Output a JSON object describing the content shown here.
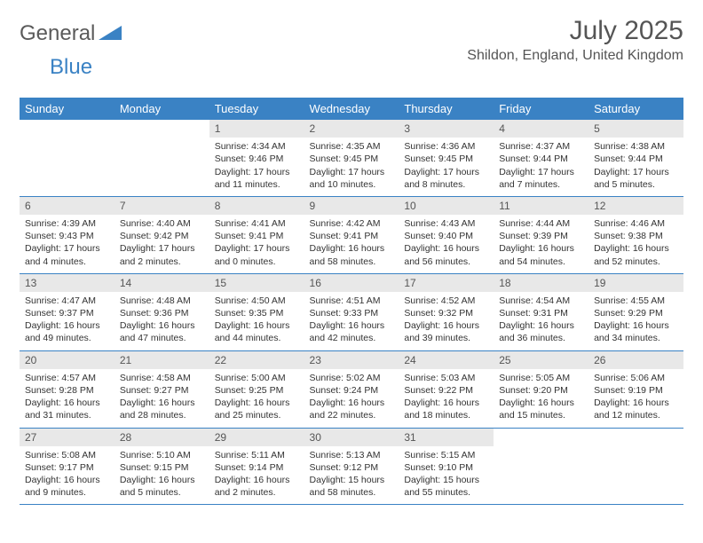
{
  "logo": {
    "part1": "General",
    "part2": "Blue"
  },
  "title": "July 2025",
  "location": "Shildon, England, United Kingdom",
  "colors": {
    "accent": "#3a82c4",
    "daynum_bg": "#e8e8e8",
    "text": "#333333",
    "header_text": "#555555"
  },
  "weekdays": [
    "Sunday",
    "Monday",
    "Tuesday",
    "Wednesday",
    "Thursday",
    "Friday",
    "Saturday"
  ],
  "weeks": [
    [
      null,
      null,
      {
        "n": "1",
        "sr": "Sunrise: 4:34 AM",
        "ss": "Sunset: 9:46 PM",
        "dl": "Daylight: 17 hours and 11 minutes."
      },
      {
        "n": "2",
        "sr": "Sunrise: 4:35 AM",
        "ss": "Sunset: 9:45 PM",
        "dl": "Daylight: 17 hours and 10 minutes."
      },
      {
        "n": "3",
        "sr": "Sunrise: 4:36 AM",
        "ss": "Sunset: 9:45 PM",
        "dl": "Daylight: 17 hours and 8 minutes."
      },
      {
        "n": "4",
        "sr": "Sunrise: 4:37 AM",
        "ss": "Sunset: 9:44 PM",
        "dl": "Daylight: 17 hours and 7 minutes."
      },
      {
        "n": "5",
        "sr": "Sunrise: 4:38 AM",
        "ss": "Sunset: 9:44 PM",
        "dl": "Daylight: 17 hours and 5 minutes."
      }
    ],
    [
      {
        "n": "6",
        "sr": "Sunrise: 4:39 AM",
        "ss": "Sunset: 9:43 PM",
        "dl": "Daylight: 17 hours and 4 minutes."
      },
      {
        "n": "7",
        "sr": "Sunrise: 4:40 AM",
        "ss": "Sunset: 9:42 PM",
        "dl": "Daylight: 17 hours and 2 minutes."
      },
      {
        "n": "8",
        "sr": "Sunrise: 4:41 AM",
        "ss": "Sunset: 9:41 PM",
        "dl": "Daylight: 17 hours and 0 minutes."
      },
      {
        "n": "9",
        "sr": "Sunrise: 4:42 AM",
        "ss": "Sunset: 9:41 PM",
        "dl": "Daylight: 16 hours and 58 minutes."
      },
      {
        "n": "10",
        "sr": "Sunrise: 4:43 AM",
        "ss": "Sunset: 9:40 PM",
        "dl": "Daylight: 16 hours and 56 minutes."
      },
      {
        "n": "11",
        "sr": "Sunrise: 4:44 AM",
        "ss": "Sunset: 9:39 PM",
        "dl": "Daylight: 16 hours and 54 minutes."
      },
      {
        "n": "12",
        "sr": "Sunrise: 4:46 AM",
        "ss": "Sunset: 9:38 PM",
        "dl": "Daylight: 16 hours and 52 minutes."
      }
    ],
    [
      {
        "n": "13",
        "sr": "Sunrise: 4:47 AM",
        "ss": "Sunset: 9:37 PM",
        "dl": "Daylight: 16 hours and 49 minutes."
      },
      {
        "n": "14",
        "sr": "Sunrise: 4:48 AM",
        "ss": "Sunset: 9:36 PM",
        "dl": "Daylight: 16 hours and 47 minutes."
      },
      {
        "n": "15",
        "sr": "Sunrise: 4:50 AM",
        "ss": "Sunset: 9:35 PM",
        "dl": "Daylight: 16 hours and 44 minutes."
      },
      {
        "n": "16",
        "sr": "Sunrise: 4:51 AM",
        "ss": "Sunset: 9:33 PM",
        "dl": "Daylight: 16 hours and 42 minutes."
      },
      {
        "n": "17",
        "sr": "Sunrise: 4:52 AM",
        "ss": "Sunset: 9:32 PM",
        "dl": "Daylight: 16 hours and 39 minutes."
      },
      {
        "n": "18",
        "sr": "Sunrise: 4:54 AM",
        "ss": "Sunset: 9:31 PM",
        "dl": "Daylight: 16 hours and 36 minutes."
      },
      {
        "n": "19",
        "sr": "Sunrise: 4:55 AM",
        "ss": "Sunset: 9:29 PM",
        "dl": "Daylight: 16 hours and 34 minutes."
      }
    ],
    [
      {
        "n": "20",
        "sr": "Sunrise: 4:57 AM",
        "ss": "Sunset: 9:28 PM",
        "dl": "Daylight: 16 hours and 31 minutes."
      },
      {
        "n": "21",
        "sr": "Sunrise: 4:58 AM",
        "ss": "Sunset: 9:27 PM",
        "dl": "Daylight: 16 hours and 28 minutes."
      },
      {
        "n": "22",
        "sr": "Sunrise: 5:00 AM",
        "ss": "Sunset: 9:25 PM",
        "dl": "Daylight: 16 hours and 25 minutes."
      },
      {
        "n": "23",
        "sr": "Sunrise: 5:02 AM",
        "ss": "Sunset: 9:24 PM",
        "dl": "Daylight: 16 hours and 22 minutes."
      },
      {
        "n": "24",
        "sr": "Sunrise: 5:03 AM",
        "ss": "Sunset: 9:22 PM",
        "dl": "Daylight: 16 hours and 18 minutes."
      },
      {
        "n": "25",
        "sr": "Sunrise: 5:05 AM",
        "ss": "Sunset: 9:20 PM",
        "dl": "Daylight: 16 hours and 15 minutes."
      },
      {
        "n": "26",
        "sr": "Sunrise: 5:06 AM",
        "ss": "Sunset: 9:19 PM",
        "dl": "Daylight: 16 hours and 12 minutes."
      }
    ],
    [
      {
        "n": "27",
        "sr": "Sunrise: 5:08 AM",
        "ss": "Sunset: 9:17 PM",
        "dl": "Daylight: 16 hours and 9 minutes."
      },
      {
        "n": "28",
        "sr": "Sunrise: 5:10 AM",
        "ss": "Sunset: 9:15 PM",
        "dl": "Daylight: 16 hours and 5 minutes."
      },
      {
        "n": "29",
        "sr": "Sunrise: 5:11 AM",
        "ss": "Sunset: 9:14 PM",
        "dl": "Daylight: 16 hours and 2 minutes."
      },
      {
        "n": "30",
        "sr": "Sunrise: 5:13 AM",
        "ss": "Sunset: 9:12 PM",
        "dl": "Daylight: 15 hours and 58 minutes."
      },
      {
        "n": "31",
        "sr": "Sunrise: 5:15 AM",
        "ss": "Sunset: 9:10 PM",
        "dl": "Daylight: 15 hours and 55 minutes."
      },
      null,
      null
    ]
  ]
}
